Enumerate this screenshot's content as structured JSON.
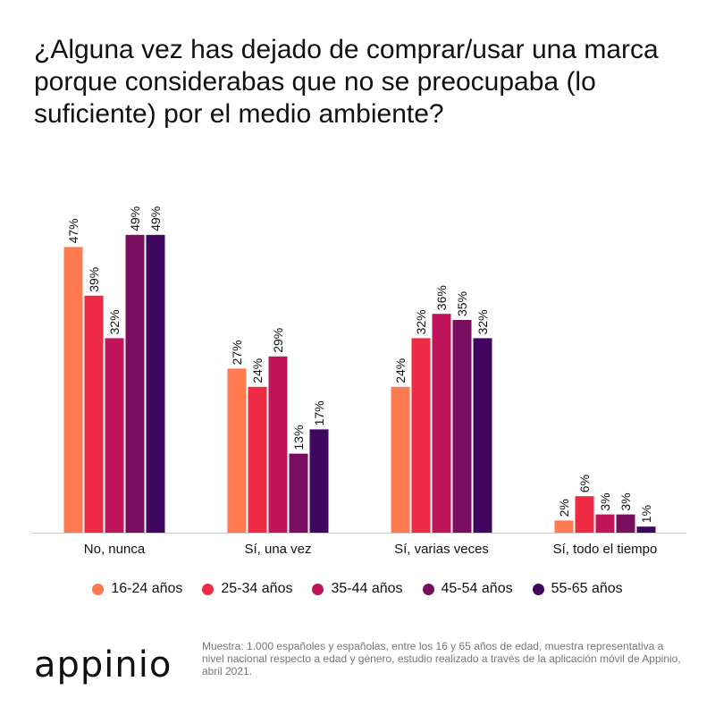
{
  "title": "¿Alguna vez has dejado de comprar/usar una marca porque considerabas que no se preocupaba (lo suficiente) por el medio ambiente?",
  "logo": "appinio",
  "footnote": "Muestra: 1.000 españoles y españolas, entre los 16 y 65 años de edad, muestra representativa a nivel nacional respecto a edad y género, estudio realizado a través de la aplicación móvil de Appinio, abril 2021.",
  "chart_data": {
    "type": "bar",
    "categories": [
      "No, nunca",
      "Sí, una vez",
      "Sí, varias veces",
      "Sí, todo el tiempo"
    ],
    "series": [
      {
        "name": "16-24 años",
        "color": "#FF7A50",
        "values": [
          47,
          27,
          24,
          2
        ],
        "labels": [
          "47%",
          "27%",
          "24%",
          "2%"
        ]
      },
      {
        "name": "25-34 años",
        "color": "#EE2A44",
        "values": [
          39,
          24,
          32,
          6
        ],
        "labels": [
          "39%",
          "24%",
          "32%",
          "6%"
        ]
      },
      {
        "name": "35-44 años",
        "color": "#C0155A",
        "values": [
          32,
          29,
          36,
          3
        ],
        "labels": [
          "32%",
          "29%",
          "36%",
          "3%"
        ]
      },
      {
        "name": "45-54 años",
        "color": "#7A0E5E",
        "values": [
          49,
          13,
          35,
          3
        ],
        "labels": [
          "49%",
          "13%",
          "35%",
          "3%"
        ]
      },
      {
        "name": "55-65 años",
        "color": "#3F0760",
        "values": [
          49,
          17,
          32,
          1
        ],
        "labels": [
          "49%",
          "17%",
          "32%",
          "1%"
        ]
      }
    ],
    "ylim": [
      0,
      50
    ],
    "grid": false,
    "legend_position": "bottom"
  }
}
